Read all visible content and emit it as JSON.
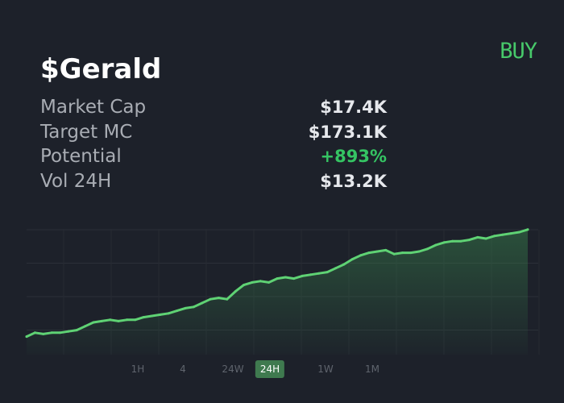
{
  "header": {
    "title": "$Gerald",
    "buy_label": "BUY"
  },
  "stats": [
    {
      "label": "Market Cap",
      "value": "$17.4K",
      "positive": false
    },
    {
      "label": "Target MC",
      "value": "$173.1K",
      "positive": false
    },
    {
      "label": "Potential",
      "value": "+893%",
      "positive": true
    },
    {
      "label": "Vol 24H",
      "value": "$13.2K",
      "positive": false
    }
  ],
  "timeframes": [
    {
      "label": "1H",
      "active": false
    },
    {
      "label": "4",
      "active": false
    },
    {
      "label": "24W",
      "active": false
    },
    {
      "label": "24H",
      "active": true
    },
    {
      "label": "1W",
      "active": false
    },
    {
      "label": "1M",
      "active": false
    }
  ],
  "colors": {
    "background": "#1d212a",
    "accent": "#47c96a",
    "positive": "#35c463",
    "line": "#5fd274"
  },
  "chart_data": {
    "type": "line",
    "title": "",
    "xlabel": "",
    "ylabel": "",
    "grid": true,
    "ylim": [
      0,
      100
    ],
    "x": [
      0,
      1,
      2,
      3,
      4,
      5,
      6,
      7,
      8,
      9,
      10,
      11,
      12,
      13,
      14,
      15,
      16,
      17,
      18,
      19,
      20,
      21,
      22,
      23,
      24,
      25,
      26,
      27,
      28,
      29,
      30,
      31,
      32,
      33,
      34,
      35,
      36,
      37,
      38,
      39,
      40,
      41,
      42,
      43,
      44,
      45,
      46,
      47,
      48,
      49,
      50,
      51,
      52,
      53,
      54,
      55,
      56,
      57,
      58,
      59,
      60
    ],
    "series": [
      {
        "values": [
          14,
          17,
          16,
          17,
          17,
          18,
          19,
          22,
          25,
          26,
          27,
          26,
          27,
          27,
          29,
          30,
          31,
          32,
          34,
          36,
          37,
          40,
          43,
          44,
          43,
          49,
          54,
          56,
          57,
          56,
          59,
          60,
          59,
          61,
          62,
          63,
          64,
          67,
          70,
          74,
          77,
          79,
          80,
          81,
          78,
          79,
          79,
          80,
          82,
          85,
          87,
          88,
          88,
          89,
          91,
          90,
          92,
          93,
          94,
          95,
          97
        ]
      }
    ]
  }
}
